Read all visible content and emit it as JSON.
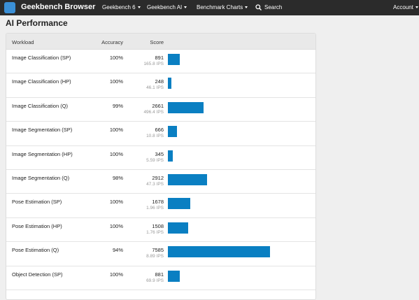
{
  "navbar": {
    "brand": "Geekbench Browser",
    "items": [
      "Geekbench 6",
      "Geekbench AI",
      "Benchmark Charts"
    ],
    "search": "Search",
    "account": "Account"
  },
  "page_title": "AI Performance",
  "table": {
    "headers": [
      "Workload",
      "Accuracy",
      "Score"
    ],
    "rows": [
      {
        "workload": "Image Classification (SP)",
        "accuracy": "100%",
        "score": 891,
        "ips": "165.8 IPS"
      },
      {
        "workload": "Image Classification (HP)",
        "accuracy": "100%",
        "score": 248,
        "ips": "46.1 IPS"
      },
      {
        "workload": "Image Classification (Q)",
        "accuracy": "99%",
        "score": 2661,
        "ips": "496.4 IPS"
      },
      {
        "workload": "Image Segmentation (SP)",
        "accuracy": "100%",
        "score": 666,
        "ips": "10.8 IPS"
      },
      {
        "workload": "Image Segmentation (HP)",
        "accuracy": "100%",
        "score": 345,
        "ips": "5.59 IPS"
      },
      {
        "workload": "Image Segmentation (Q)",
        "accuracy": "98%",
        "score": 2912,
        "ips": "47.3 IPS"
      },
      {
        "workload": "Pose Estimation (SP)",
        "accuracy": "100%",
        "score": 1678,
        "ips": "1.96 IPS"
      },
      {
        "workload": "Pose Estimation (HP)",
        "accuracy": "100%",
        "score": 1508,
        "ips": "1.76 IPS"
      },
      {
        "workload": "Pose Estimation (Q)",
        "accuracy": "94%",
        "score": 7585,
        "ips": "8.89 IPS"
      },
      {
        "workload": "Object Detection (SP)",
        "accuracy": "100%",
        "score": 881,
        "ips": "69.9 IPS"
      }
    ]
  }
}
